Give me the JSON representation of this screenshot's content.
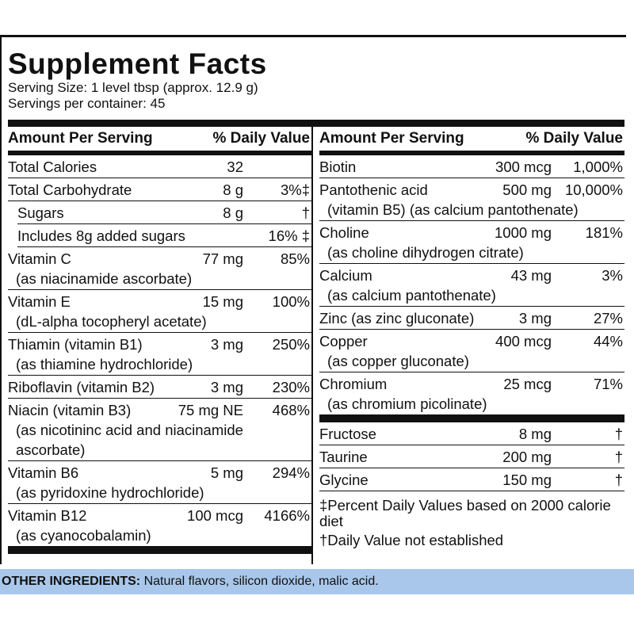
{
  "title": "Supplement Facts",
  "serving_size": "Serving Size: 1 level tbsp (approx. 12.9 g)",
  "servings": "Servings per container: 45",
  "columns": [
    {
      "header": [
        "Amount Per Serving",
        "% Daily Value"
      ],
      "groups": [
        [
          {
            "name": "Total Calories",
            "amount": "32"
          },
          {
            "name": "Total Carbohydrate",
            "amount": "8 g",
            "dv": "3%‡"
          },
          {
            "name": "Sugars",
            "amount": "8 g",
            "dv": "†",
            "indent": true
          },
          {
            "name": "Includes 8g added sugars",
            "dv": "16% ‡",
            "indent": true
          },
          {
            "name": "Vitamin C",
            "amount": "77 mg",
            "dv": "85%",
            "detail": "(as niacinamide ascorbate)"
          },
          {
            "name": "Vitamin E",
            "amount": "15 mg",
            "dv": "100%",
            "detail": "(dL-alpha tocopheryl acetate)"
          },
          {
            "name": "Thiamin (vitamin B1)",
            "amount": "3 mg",
            "dv": "250%",
            "detail": "(as thiamine hydrochloride)"
          },
          {
            "name": "Riboflavin (vitamin B2)",
            "amount": "3 mg",
            "dv": "230%"
          },
          {
            "name": "Niacin (vitamin B3)",
            "amount": "75 mg NE",
            "dv": "468%",
            "detail": "(as nicotininc acid and niacinamide ascorbate)"
          },
          {
            "name": "Vitamin B6",
            "amount": "5 mg",
            "dv": "294%",
            "detail": "(as pyridoxine hydrochloride)"
          },
          {
            "name": "Vitamin B12",
            "amount": "100 mcg",
            "dv": "4166%",
            "detail": "(as cyanocobalamin)"
          }
        ]
      ]
    },
    {
      "header": [
        "Amount Per Serving",
        "% Daily Value"
      ],
      "groups": [
        [
          {
            "name": "Biotin",
            "amount": "300 mcg",
            "dv": "1,000%"
          },
          {
            "name": "Pantothenic acid",
            "amount": "500 mg",
            "dv": "10,000%",
            "detail": "(vitamin B5) (as calcium pantothenate)"
          },
          {
            "name": "Choline",
            "amount": "1000 mg",
            "dv": "181%",
            "detail": "(as choline dihydrogen citrate)"
          },
          {
            "name": "Calcium",
            "amount": "43 mg",
            "dv": "3%",
            "detail": "(as calcium pantothenate)"
          },
          {
            "name": "Zinc (as zinc gluconate)",
            "amount": "3 mg",
            "dv": "27%"
          },
          {
            "name": "Copper",
            "amount": "400 mcg",
            "dv": "44%",
            "detail": "(as copper gluconate)"
          },
          {
            "name": "Chromium",
            "amount": "25 mcg",
            "dv": "71%",
            "detail": "(as chromium picolinate)"
          }
        ],
        [
          {
            "name": "Fructose",
            "amount": "8 mg",
            "dv": "†"
          },
          {
            "name": "Taurine",
            "amount": "200 mg",
            "dv": "†"
          },
          {
            "name": "Glycine",
            "amount": "150 mg",
            "dv": "†"
          }
        ]
      ],
      "footnotes": [
        "‡Percent Daily Values based on 2000 calorie diet",
        "†Daily Value not established"
      ]
    }
  ],
  "other_ingredients": {
    "label": "OTHER INGREDIENTS:",
    "text": "Natural flavors, silicon dioxide, malic acid."
  }
}
